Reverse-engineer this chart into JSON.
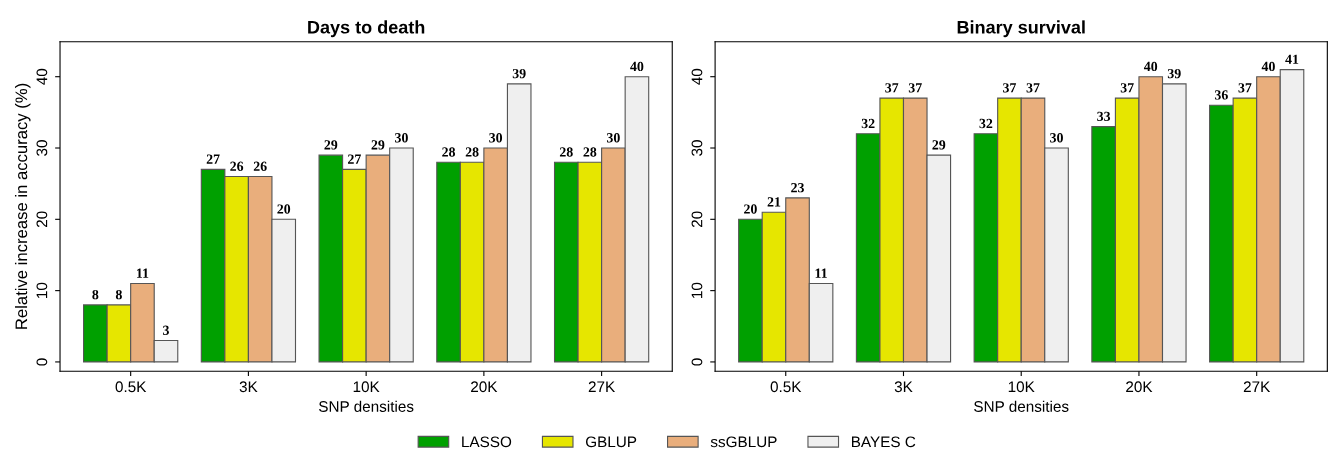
{
  "chart_data": [
    {
      "type": "bar",
      "title": "Days to death",
      "xlabel": "SNP densities",
      "ylabel": "Relative increase in accuracy (%)",
      "categories": [
        "0.5K",
        "3K",
        "10K",
        "20K",
        "27K"
      ],
      "series": [
        {
          "name": "LASSO",
          "color": "#00a000",
          "values": [
            8,
            27,
            29,
            28,
            28
          ]
        },
        {
          "name": "GBLUP",
          "color": "#e6e600",
          "values": [
            8,
            26,
            27,
            28,
            28
          ]
        },
        {
          "name": "ssGBLUP",
          "color": "#e9ae7c",
          "values": [
            11,
            26,
            29,
            30,
            30
          ]
        },
        {
          "name": "BAYES C",
          "color": "#efefef",
          "values": [
            3,
            20,
            30,
            39,
            40
          ]
        }
      ],
      "ylim": [
        -1.3,
        44.9
      ],
      "yticks": [
        0,
        10,
        20,
        30,
        40
      ],
      "data_labels": true,
      "legend": "bottom",
      "grid": false
    },
    {
      "type": "bar",
      "title": "Binary survival",
      "xlabel": "SNP densities",
      "categories": [
        "0.5K",
        "3K",
        "10K",
        "20K",
        "27K"
      ],
      "series": [
        {
          "color": "#00a000",
          "values": [
            20,
            32,
            32,
            33,
            36
          ]
        },
        {
          "color": "#e6e600",
          "values": [
            21,
            37,
            37,
            37,
            37
          ]
        },
        {
          "color": "#e9ae7c",
          "values": [
            23,
            37,
            37,
            40,
            40
          ]
        },
        {
          "color": "#efefef",
          "values": [
            11,
            29,
            30,
            39,
            41
          ]
        }
      ],
      "ylim": [
        -1.3,
        44.9
      ],
      "yticks": [
        0,
        10,
        20,
        30,
        40
      ],
      "data_labels": true,
      "grid": false
    }
  ]
}
